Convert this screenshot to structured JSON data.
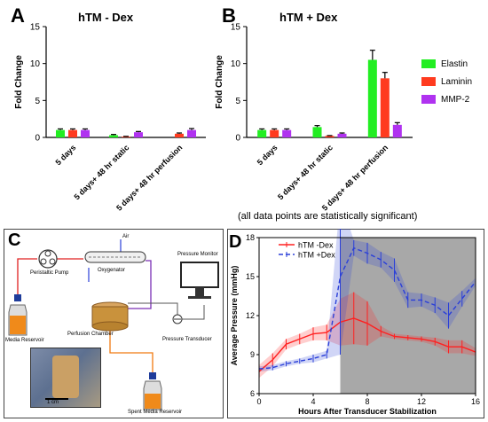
{
  "panels": {
    "A": {
      "letter": "A",
      "title": "hTM - Dex",
      "ylabel": "Fold Change",
      "ylim": [
        0,
        15
      ],
      "yticks": [
        0,
        5,
        10,
        15
      ],
      "categories": [
        "5 days",
        "5 days+ 48 hr static",
        "5 days+ 48 hr perfusion"
      ]
    },
    "B": {
      "letter": "B",
      "title": "hTM + Dex",
      "ylabel": "Fold Change",
      "ylim": [
        0,
        15
      ],
      "yticks": [
        0,
        5,
        10,
        15
      ],
      "categories": [
        "5 days",
        "5 days+ 48 hr static",
        "5 days+ 48 hr perfusion"
      ]
    },
    "C": {
      "letter": "C"
    },
    "D": {
      "letter": "D"
    }
  },
  "legend_bar": [
    {
      "name": "Elastin",
      "color": "#22ee22"
    },
    {
      "name": "Laminin",
      "color": "#ff3b1f"
    },
    {
      "name": "MMP-2",
      "color": "#b032f0"
    }
  ],
  "footnote": "(all data points are statistically significant)",
  "diagram": {
    "air": "Air",
    "peristaltic_pump": "Peristaltic Pump",
    "oxygenator": "Oxygenator",
    "pressure_monitor": "Pressure Monitor",
    "media_reservoir": "Media Reservoir",
    "perfusion_chamber": "Perfusion Chamber",
    "pressure_transducer": "Pressure Transducer",
    "spent_media_reservoir": "Spent Media Reservoir",
    "scale": "1 cm"
  },
  "chart_data": [
    {
      "type": "bar",
      "panel": "A",
      "title": "hTM - Dex",
      "ylabel": "Fold Change",
      "ylim": [
        0,
        15
      ],
      "categories": [
        "5 days",
        "5 days+ 48 hr static",
        "5 days+ 48 hr perfusion"
      ],
      "series": [
        {
          "name": "Elastin",
          "values": [
            1.0,
            0.3,
            0.0
          ],
          "errors": [
            0.15,
            0.1,
            0.0
          ]
        },
        {
          "name": "Laminin",
          "values": [
            1.0,
            0.1,
            0.5
          ],
          "errors": [
            0.15,
            0.05,
            0.1
          ]
        },
        {
          "name": "MMP-2",
          "values": [
            1.0,
            0.7,
            1.0
          ],
          "errors": [
            0.15,
            0.1,
            0.2
          ]
        }
      ]
    },
    {
      "type": "bar",
      "panel": "B",
      "title": "hTM + Dex",
      "ylabel": "Fold Change",
      "ylim": [
        0,
        15
      ],
      "categories": [
        "5 days",
        "5 days+ 48 hr static",
        "5 days+ 48 hr perfusion"
      ],
      "series": [
        {
          "name": "Elastin",
          "values": [
            1.0,
            1.4,
            10.5
          ],
          "errors": [
            0.15,
            0.2,
            1.3
          ]
        },
        {
          "name": "Laminin",
          "values": [
            1.0,
            0.2,
            8.0
          ],
          "errors": [
            0.15,
            0.05,
            0.8
          ]
        },
        {
          "name": "MMP-2",
          "values": [
            1.0,
            0.5,
            1.7
          ],
          "errors": [
            0.15,
            0.1,
            0.3
          ]
        }
      ]
    },
    {
      "type": "line",
      "panel": "D",
      "xlabel": "Hours After Transducer Stabilization",
      "ylabel": "Average Pressure (mmHg)",
      "xlim": [
        0,
        16
      ],
      "ylim": [
        6,
        18
      ],
      "xticks": [
        0,
        4,
        8,
        12,
        16
      ],
      "yticks": [
        6,
        9,
        12,
        15,
        18
      ],
      "legend": "top-left",
      "shaded_region": {
        "x_start": 6,
        "x_end": 16,
        "color": "#999999"
      },
      "series": [
        {
          "name": "hTM -Dex",
          "color": "#ff2020",
          "x": [
            0,
            1,
            2,
            3,
            4,
            5,
            6,
            7,
            8,
            9,
            10,
            11,
            12,
            13,
            14,
            15,
            16
          ],
          "y": [
            7.7,
            8.6,
            9.8,
            10.2,
            10.6,
            10.7,
            11.5,
            11.8,
            11.4,
            10.8,
            10.4,
            10.3,
            10.2,
            10.0,
            9.6,
            9.6,
            9.2
          ],
          "err": [
            0.5,
            0.5,
            0.4,
            0.4,
            0.5,
            0.6,
            1.8,
            2.0,
            1.7,
            0.4,
            0.2,
            0.2,
            0.2,
            0.3,
            0.5,
            0.5,
            0.3
          ]
        },
        {
          "name": "hTM +Dex",
          "color": "#2a3fd8",
          "x": [
            0,
            1,
            2,
            3,
            4,
            5,
            6,
            7,
            8,
            9,
            10,
            11,
            12,
            13,
            14,
            15,
            16
          ],
          "y": [
            7.9,
            8.0,
            8.3,
            8.5,
            8.7,
            9.0,
            15.0,
            17.2,
            16.8,
            16.3,
            15.5,
            13.2,
            13.2,
            12.8,
            12.0,
            13.3,
            14.6
          ],
          "err": [
            0.2,
            0.2,
            0.2,
            0.2,
            0.3,
            0.3,
            6.0,
            0.6,
            0.8,
            0.6,
            0.9,
            0.6,
            0.5,
            0.6,
            1.0,
            0.6,
            0.3
          ]
        }
      ]
    }
  ]
}
